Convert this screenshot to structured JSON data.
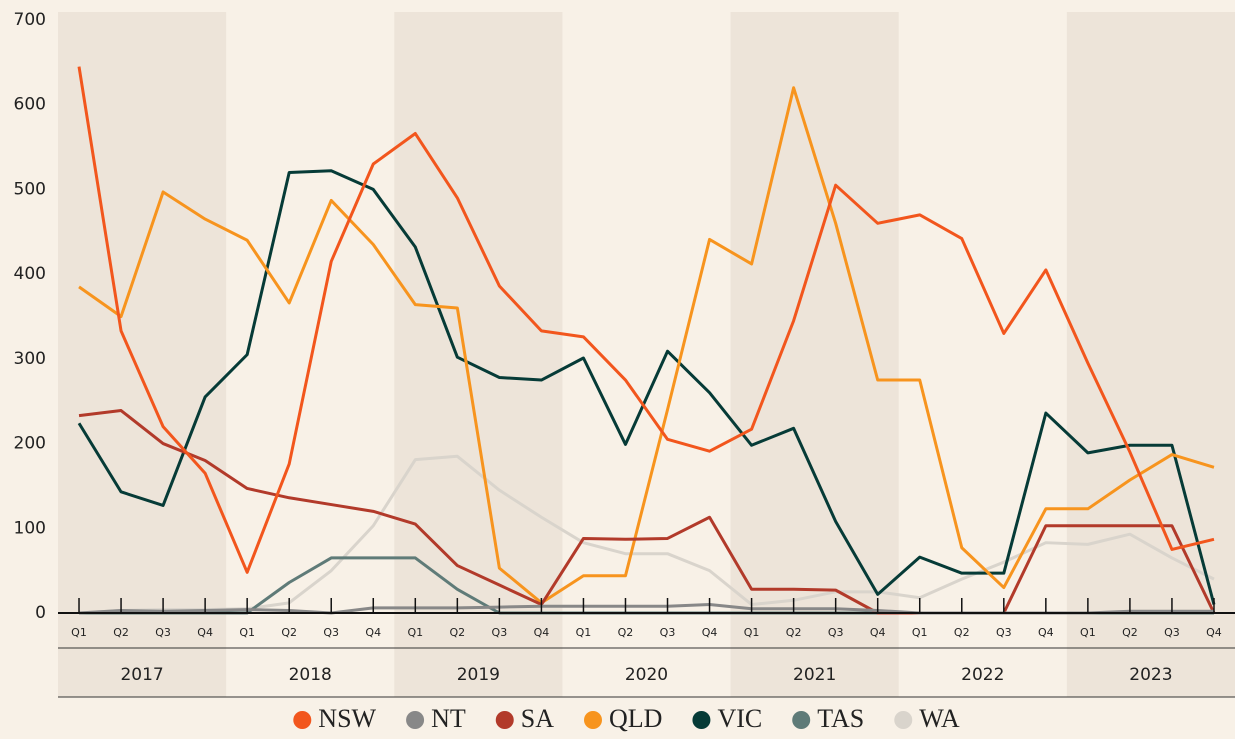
{
  "chart_data": {
    "type": "line",
    "categories": [
      "Q1",
      "Q2",
      "Q3",
      "Q4",
      "Q1",
      "Q2",
      "Q3",
      "Q4",
      "Q1",
      "Q2",
      "Q3",
      "Q4",
      "Q1",
      "Q2",
      "Q3",
      "Q4",
      "Q1",
      "Q2",
      "Q3",
      "Q4",
      "Q1",
      "Q2",
      "Q3",
      "Q4",
      "Q1",
      "Q2",
      "Q3",
      "Q4"
    ],
    "years": [
      "2017",
      "2018",
      "2019",
      "2020",
      "2021",
      "2022",
      "2023"
    ],
    "ylim": [
      0,
      700
    ],
    "yticks": [
      0,
      100,
      200,
      300,
      400,
      500,
      600,
      700
    ],
    "series": [
      {
        "name": "NSW",
        "color": "#f2561d",
        "values": [
          645,
          333,
          220,
          165,
          48,
          176,
          415,
          530,
          566,
          490,
          386,
          333,
          326,
          275,
          205,
          191,
          217,
          345,
          505,
          460,
          470,
          442,
          330,
          405,
          295,
          190,
          75,
          87
        ]
      },
      {
        "name": "NT",
        "color": "#888888",
        "values": [
          0,
          3,
          2,
          3,
          4,
          3,
          0,
          6,
          6,
          6,
          7,
          8,
          8,
          8,
          8,
          10,
          5,
          5,
          5,
          3,
          0,
          0,
          0,
          0,
          0,
          2,
          2,
          2
        ]
      },
      {
        "name": "SA",
        "color": "#b23a2a",
        "values": [
          233,
          239,
          200,
          180,
          147,
          136,
          128,
          120,
          105,
          56,
          33,
          10,
          88,
          87,
          88,
          113,
          28,
          28,
          27,
          0,
          0,
          0,
          0,
          103,
          103,
          103,
          103,
          0
        ]
      },
      {
        "name": "QLD",
        "color": "#f7941e",
        "values": [
          385,
          350,
          497,
          465,
          440,
          366,
          487,
          435,
          364,
          360,
          53,
          12,
          44,
          44,
          240,
          441,
          412,
          620,
          460,
          275,
          275,
          77,
          30,
          123,
          123,
          157,
          187,
          172
        ]
      },
      {
        "name": "VIC",
        "color": "#063b37",
        "values": [
          224,
          143,
          127,
          255,
          305,
          520,
          522,
          500,
          432,
          302,
          278,
          275,
          301,
          199,
          309,
          260,
          198,
          218,
          108,
          22,
          66,
          47,
          47,
          236,
          189,
          198,
          198,
          10
        ]
      },
      {
        "name": "TAS",
        "color": "#5f7b78",
        "values": [
          0,
          0,
          0,
          0,
          0,
          36,
          65,
          65,
          65,
          28,
          0,
          0,
          0,
          0,
          0,
          0,
          0,
          0,
          0,
          0,
          0,
          0,
          0,
          0,
          0,
          0,
          0,
          0
        ]
      },
      {
        "name": "WA",
        "color": "#d9d4cc",
        "values": [
          0,
          3,
          4,
          4,
          5,
          12,
          50,
          103,
          181,
          185,
          145,
          113,
          83,
          70,
          70,
          50,
          10,
          15,
          25,
          25,
          18,
          40,
          60,
          83,
          81,
          93,
          65,
          40
        ]
      }
    ]
  }
}
